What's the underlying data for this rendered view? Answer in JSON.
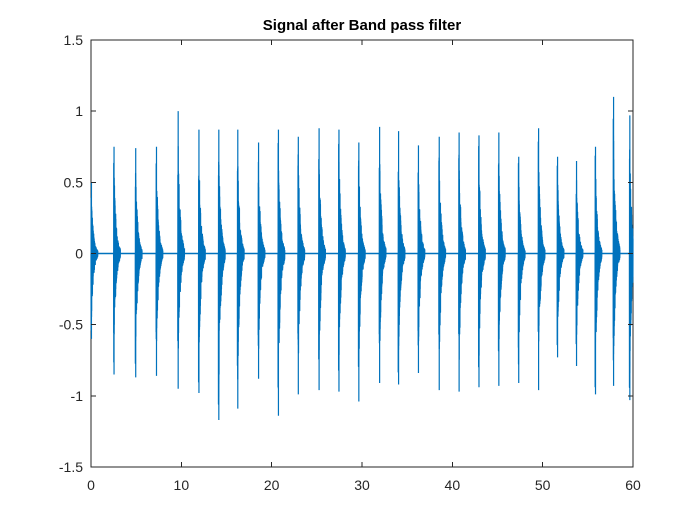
{
  "chart_data": {
    "type": "line",
    "title": "Signal after Band pass filter",
    "xlabel": "",
    "ylabel": "",
    "xlim": [
      0,
      60
    ],
    "ylim": [
      -1.5,
      1.5
    ],
    "x_ticks": [
      0,
      10,
      20,
      30,
      40,
      50,
      60
    ],
    "y_ticks": [
      -1.5,
      -1,
      -0.5,
      0,
      0.5,
      1,
      1.5
    ],
    "x_tick_labels": [
      "0",
      "10",
      "20",
      "30",
      "40",
      "50",
      "60"
    ],
    "y_tick_labels": [
      "-1.5",
      "-1",
      "-0.5",
      "0",
      "0.5",
      "1",
      "1.5"
    ],
    "grid": false,
    "legend": "none",
    "series_color": "#0072BD",
    "series": [
      {
        "bursts": [
          {
            "t": 0.0,
            "max": 0.5,
            "min": -0.6
          },
          {
            "t": 2.5,
            "max": 0.75,
            "min": -0.85
          },
          {
            "t": 4.9,
            "max": 0.74,
            "min": -0.87
          },
          {
            "t": 7.2,
            "max": 0.75,
            "min": -0.86
          },
          {
            "t": 9.6,
            "max": 1.0,
            "min": -0.95
          },
          {
            "t": 11.9,
            "max": 0.87,
            "min": -0.98
          },
          {
            "t": 14.1,
            "max": 0.87,
            "min": -1.17
          },
          {
            "t": 16.2,
            "max": 0.87,
            "min": -1.09
          },
          {
            "t": 18.5,
            "max": 0.78,
            "min": -0.88
          },
          {
            "t": 20.7,
            "max": 0.87,
            "min": -1.14
          },
          {
            "t": 22.9,
            "max": 0.82,
            "min": -0.99
          },
          {
            "t": 25.2,
            "max": 0.88,
            "min": -0.96
          },
          {
            "t": 27.4,
            "max": 0.87,
            "min": -0.97
          },
          {
            "t": 29.6,
            "max": 0.78,
            "min": -1.04
          },
          {
            "t": 31.9,
            "max": 0.89,
            "min": -0.91
          },
          {
            "t": 34.0,
            "max": 0.86,
            "min": -0.92
          },
          {
            "t": 36.2,
            "max": 0.76,
            "min": -0.84
          },
          {
            "t": 38.5,
            "max": 0.82,
            "min": -0.96
          },
          {
            "t": 40.7,
            "max": 0.85,
            "min": -0.97
          },
          {
            "t": 42.9,
            "max": 0.83,
            "min": -0.94
          },
          {
            "t": 45.1,
            "max": 0.85,
            "min": -0.93
          },
          {
            "t": 47.3,
            "max": 0.68,
            "min": -0.91
          },
          {
            "t": 49.5,
            "max": 0.88,
            "min": -0.96
          },
          {
            "t": 51.6,
            "max": 0.68,
            "min": -0.73
          },
          {
            "t": 53.7,
            "max": 0.65,
            "min": -0.79
          },
          {
            "t": 55.8,
            "max": 0.75,
            "min": -0.99
          },
          {
            "t": 57.8,
            "max": 1.1,
            "min": -0.93
          },
          {
            "t": 59.6,
            "max": 0.97,
            "min": -1.03
          }
        ]
      }
    ]
  }
}
